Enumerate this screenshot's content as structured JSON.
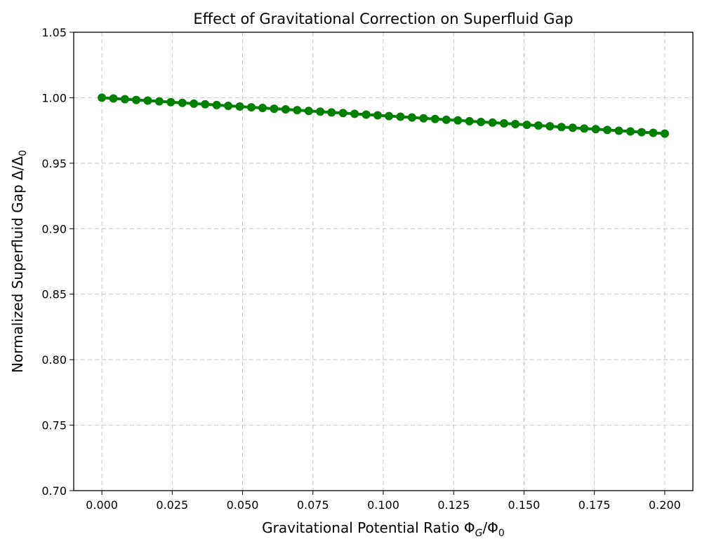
{
  "chart_data": {
    "type": "line",
    "title": "Effect of Gravitational Correction on Superfluid Gap",
    "xlabel": {
      "main": "Gravitational Potential Ratio ",
      "sym1": "Φ",
      "sub1": "G",
      "sep": "/Φ",
      "sub2": "0"
    },
    "ylabel": {
      "main": "Normalized Superfluid Gap Δ/Δ",
      "sub": "0"
    },
    "xlim": [
      -0.01,
      0.21
    ],
    "ylim": [
      0.7,
      1.05
    ],
    "xticks": [
      "0.000",
      "0.025",
      "0.050",
      "0.075",
      "0.100",
      "0.125",
      "0.150",
      "0.175",
      "0.200"
    ],
    "yticks": [
      "0.70",
      "0.75",
      "0.80",
      "0.85",
      "0.90",
      "0.95",
      "1.00",
      "1.05"
    ],
    "grid": true,
    "series": [
      {
        "name": "Δ/Δ0",
        "color": "#008000",
        "marker": "circle",
        "x": [
          0.0,
          0.0041,
          0.0082,
          0.0122,
          0.0163,
          0.0204,
          0.0245,
          0.0286,
          0.0327,
          0.0367,
          0.0408,
          0.0449,
          0.049,
          0.0531,
          0.0571,
          0.0612,
          0.0653,
          0.0694,
          0.0735,
          0.0776,
          0.0816,
          0.0857,
          0.0898,
          0.0939,
          0.098,
          0.102,
          0.1061,
          0.1102,
          0.1143,
          0.1184,
          0.1224,
          0.1265,
          0.1306,
          0.1347,
          0.1388,
          0.1429,
          0.1469,
          0.151,
          0.1551,
          0.1592,
          0.1633,
          0.1673,
          0.1714,
          0.1755,
          0.1796,
          0.1837,
          0.1878,
          0.1918,
          0.1959,
          0.2
        ],
        "y": [
          1.0,
          0.9994,
          0.9989,
          0.9983,
          0.9978,
          0.9972,
          0.9966,
          0.9961,
          0.9955,
          0.995,
          0.9944,
          0.9938,
          0.9933,
          0.9927,
          0.9922,
          0.9916,
          0.9911,
          0.9905,
          0.9899,
          0.9894,
          0.9888,
          0.9883,
          0.9877,
          0.9871,
          0.9866,
          0.986,
          0.9855,
          0.9849,
          0.9843,
          0.9838,
          0.9832,
          0.9827,
          0.9821,
          0.9815,
          0.981,
          0.9804,
          0.9799,
          0.9793,
          0.9788,
          0.9782,
          0.9776,
          0.9771,
          0.9765,
          0.976,
          0.9754,
          0.9748,
          0.9743,
          0.9737,
          0.9732,
          0.9726
        ]
      }
    ]
  }
}
